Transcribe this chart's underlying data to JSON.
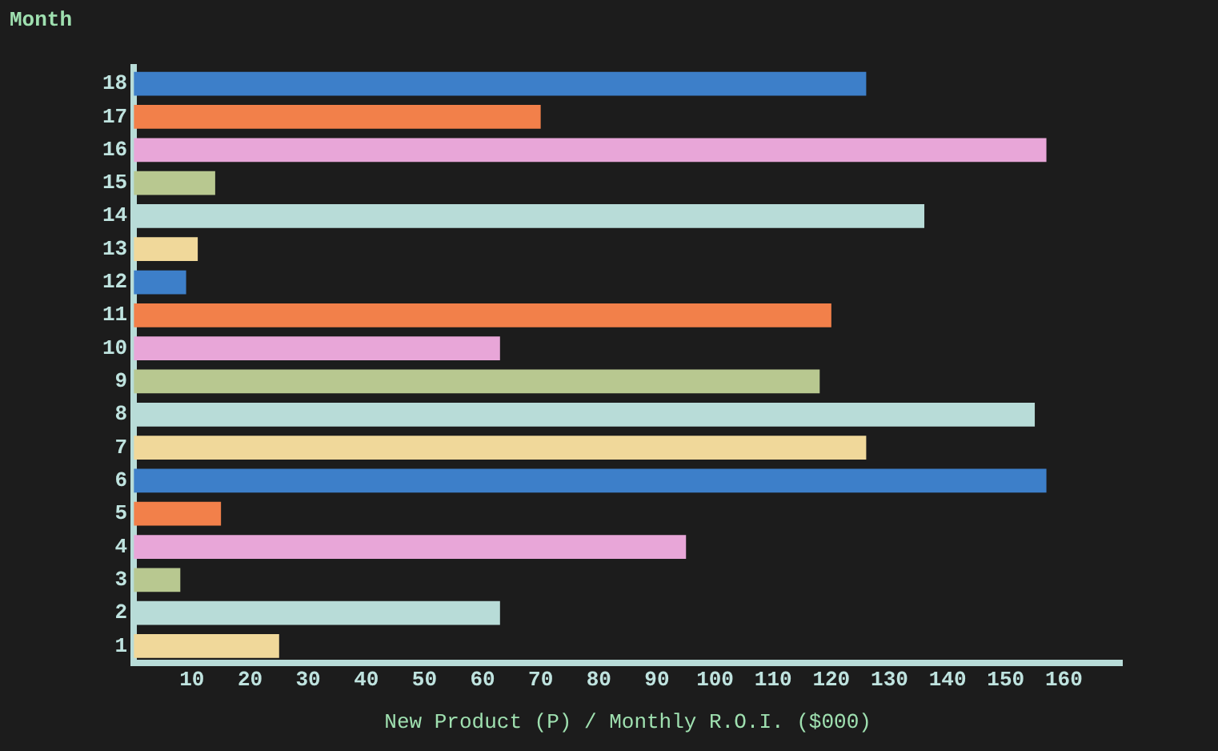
{
  "chart_data": {
    "type": "bar",
    "orientation": "horizontal",
    "ylabel": "Month",
    "xlabel": "New Product (P) / Monthly R.O.I. ($000)",
    "categories": [
      "18",
      "17",
      "16",
      "15",
      "14",
      "13",
      "12",
      "11",
      "10",
      "9",
      "8",
      "7",
      "6",
      "5",
      "4",
      "3",
      "2",
      "1"
    ],
    "values": [
      126,
      70,
      157,
      14,
      136,
      11,
      9,
      120,
      63,
      118,
      155,
      126,
      157,
      15,
      95,
      8,
      63,
      25
    ],
    "colors": [
      "#3d7fc9",
      "#f2804a",
      "#e8a6d8",
      "#b8c890",
      "#b8dcd8",
      "#f0d89a",
      "#3d7fc9",
      "#f2804a",
      "#e8a6d8",
      "#b8c890",
      "#b8dcd8",
      "#f0d89a",
      "#3d7fc9",
      "#f2804a",
      "#e8a6d8",
      "#b8c890",
      "#b8dcd8",
      "#f0d89a"
    ],
    "xlim": [
      0,
      170
    ],
    "xticks": [
      10,
      20,
      30,
      40,
      50,
      60,
      70,
      80,
      90,
      100,
      110,
      120,
      130,
      140,
      150,
      160
    ],
    "grid": false,
    "legend": false
  }
}
